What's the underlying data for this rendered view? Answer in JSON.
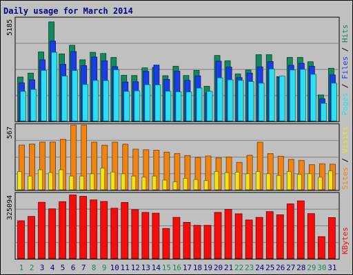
{
  "chart_data": [
    {
      "type": "bar",
      "title": "Daily usage for March 2014",
      "panel": "top",
      "ylim": [
        0,
        5185
      ],
      "ylabel_max": "5185",
      "legend_placement": "right",
      "categories": [
        "1",
        "2",
        "3",
        "4",
        "5",
        "6",
        "7",
        "8",
        "9",
        "10",
        "11",
        "12",
        "13",
        "14",
        "15",
        "16",
        "17",
        "18",
        "19",
        "20",
        "21",
        "22",
        "23",
        "24",
        "25",
        "26",
        "27",
        "28",
        "29",
        "30",
        "31"
      ],
      "series": [
        {
          "name": "Hits",
          "color": "#138a5a",
          "values": [
            2240,
            2440,
            3520,
            5050,
            3420,
            3860,
            3120,
            3500,
            3440,
            3240,
            2330,
            2320,
            2710,
            2730,
            2310,
            2790,
            2320,
            2580,
            1770,
            3340,
            3070,
            2400,
            2600,
            3380,
            3380,
            2260,
            3240,
            3240,
            3020,
            1330,
            2690
          ]
        },
        {
          "name": "Files",
          "color": "#1a3ee6",
          "values": [
            1940,
            2100,
            3120,
            4070,
            2890,
            3540,
            2820,
            3260,
            3070,
            2770,
            1990,
            2000,
            2530,
            2850,
            2120,
            2540,
            2070,
            2300,
            1440,
            3050,
            2750,
            2210,
            2440,
            2760,
            3030,
            2230,
            2840,
            2940,
            2790,
            1130,
            2350
          ]
        },
        {
          "name": "Pages",
          "color": "#2ce0f4",
          "values": [
            1510,
            1610,
            2580,
            3500,
            2290,
            2570,
            1860,
            2070,
            2060,
            2610,
            1510,
            1540,
            1850,
            1840,
            1520,
            1490,
            1480,
            1680,
            1510,
            2200,
            2100,
            2070,
            2010,
            1930,
            2650,
            2290,
            2600,
            2630,
            2380,
            900,
            1930
          ]
        }
      ]
    },
    {
      "type": "bar",
      "panel": "middle",
      "ylim": [
        0,
        567
      ],
      "ylabel_max": "567",
      "legend_placement": "right",
      "categories": [
        "1",
        "2",
        "3",
        "4",
        "5",
        "6",
        "7",
        "8",
        "9",
        "10",
        "11",
        "12",
        "13",
        "14",
        "15",
        "16",
        "17",
        "18",
        "19",
        "20",
        "21",
        "22",
        "23",
        "24",
        "25",
        "26",
        "27",
        "28",
        "29",
        "30",
        "31"
      ],
      "series": [
        {
          "name": "Visits",
          "color": "#f08412",
          "values": [
            392,
            401,
            418,
            418,
            442,
            567,
            567,
            417,
            391,
            417,
            400,
            356,
            351,
            347,
            330,
            318,
            300,
            284,
            296,
            279,
            288,
            240,
            302,
            417,
            317,
            294,
            266,
            258,
            220,
            228,
            224
          ]
        },
        {
          "name": "Sites",
          "color": "#f3e21a",
          "values": [
            160,
            120,
            175,
            150,
            175,
            120,
            120,
            140,
            190,
            155,
            140,
            120,
            110,
            120,
            85,
            70,
            100,
            90,
            80,
            160,
            150,
            155,
            140,
            160,
            140,
            125,
            160,
            135,
            140,
            110,
            165
          ]
        }
      ]
    },
    {
      "type": "bar",
      "panel": "bottom",
      "ylim": [
        0,
        325094
      ],
      "ylabel_max": "325094",
      "legend_placement": "right",
      "categories": [
        "1",
        "2",
        "3",
        "4",
        "5",
        "6",
        "7",
        "8",
        "9",
        "10",
        "11",
        "12",
        "13",
        "14",
        "15",
        "16",
        "17",
        "18",
        "19",
        "20",
        "21",
        "22",
        "23",
        "24",
        "25",
        "26",
        "27",
        "28",
        "29",
        "30",
        "31"
      ],
      "series": [
        {
          "name": "KBytes",
          "color": "#f40d0d",
          "values": [
            190000,
            212000,
            283000,
            250000,
            286000,
            320000,
            313000,
            295000,
            287000,
            253000,
            282000,
            246000,
            232000,
            228000,
            151000,
            207000,
            182000,
            167000,
            167000,
            232000,
            247000,
            225000,
            194000,
            207000,
            236000,
            220000,
            275000,
            290000,
            226000,
            110000,
            206000
          ]
        }
      ]
    }
  ],
  "legend_separator": " / ",
  "highlight_day_color": "#138a5a",
  "default_day_color": "#000080",
  "highlight_days": [
    "1",
    "2",
    "8",
    "9",
    "15",
    "16",
    "22",
    "23",
    "29",
    "30"
  ]
}
